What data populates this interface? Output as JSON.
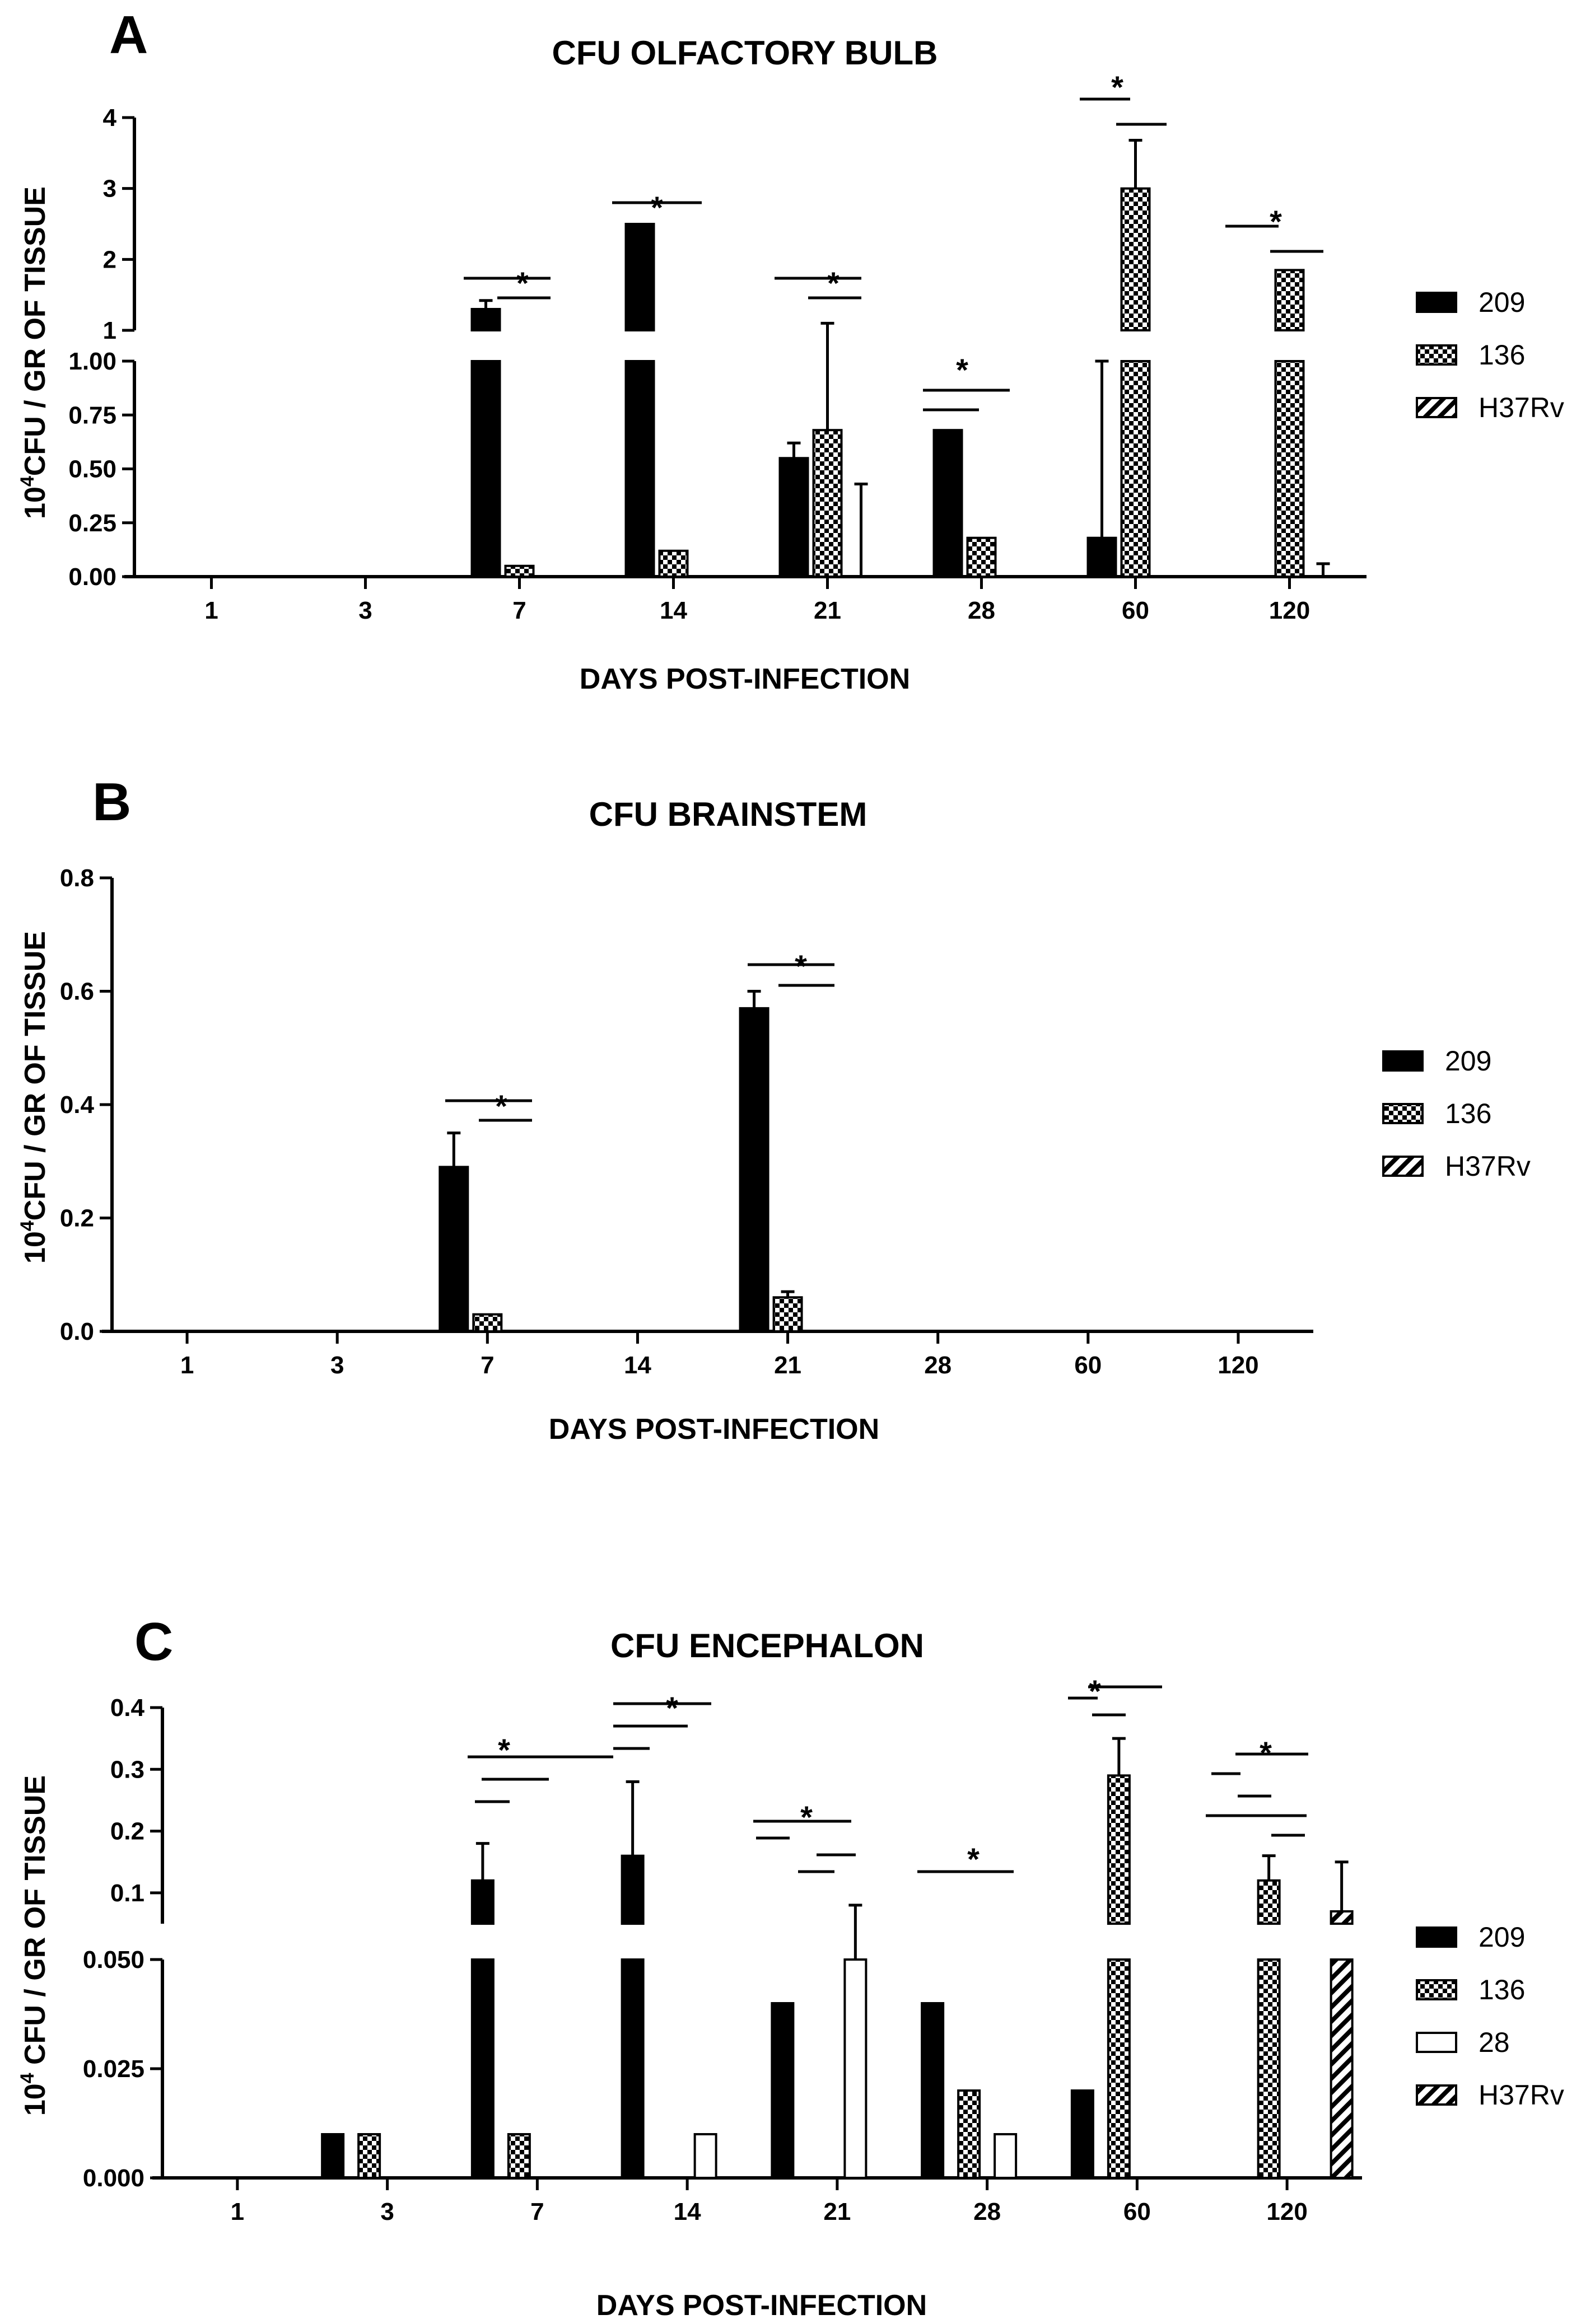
{
  "chart_data": [
    {
      "type": "bar",
      "panel": "A",
      "title": "CFU OLFACTORY BULB",
      "xlabel": "DAYS POST-INFECTION",
      "ylabel": "10^4CFU / GR OF TISSUE",
      "ylabel_base": "10",
      "ylabel_exp": "4",
      "ylabel_rest": "CFU / GR OF TISSUE",
      "categories": [
        "1",
        "3",
        "7",
        "14",
        "21",
        "28",
        "60",
        "120"
      ],
      "y_axis_broken": true,
      "ylim_lower": [
        0,
        1.0
      ],
      "ylim_upper": [
        1,
        4
      ],
      "yticks_lower": [
        "0.00",
        "0.25",
        "0.50",
        "0.75",
        "1.00"
      ],
      "yticks_upper": [
        "1",
        "2",
        "3",
        "4"
      ],
      "legend": [
        "209",
        "136",
        "H37Rv"
      ],
      "series": [
        {
          "name": "209",
          "pattern": "solid",
          "values": [
            0,
            0,
            1.3,
            2.5,
            0.55,
            0.68,
            0.18,
            0
          ],
          "errors": [
            0,
            0,
            0.12,
            0,
            0.07,
            0,
            0.82,
            0
          ]
        },
        {
          "name": "136",
          "pattern": "checker",
          "values": [
            0,
            0,
            0.05,
            0.12,
            0.68,
            0.18,
            3.0,
            1.85
          ],
          "errors": [
            0,
            0,
            0,
            0,
            0.42,
            0,
            0.68,
            0
          ]
        },
        {
          "name": "H37Rv",
          "pattern": "hatch",
          "values": [
            0,
            0,
            0,
            0,
            0,
            0,
            0,
            0
          ],
          "errors": [
            0,
            0,
            0,
            0,
            0.43,
            0,
            0,
            0.06
          ]
        }
      ],
      "significance": [
        "*",
        "*",
        "*",
        "*",
        "*",
        "*"
      ]
    },
    {
      "type": "bar",
      "panel": "B",
      "title": "CFU BRAINSTEM",
      "xlabel": "DAYS POST-INFECTION",
      "ylabel": "10^4CFU / GR OF TISSUE",
      "ylabel_base": "10",
      "ylabel_exp": "4",
      "ylabel_rest": "CFU / GR OF TISSUE",
      "categories": [
        "1",
        "3",
        "7",
        "14",
        "21",
        "28",
        "60",
        "120"
      ],
      "ylim": [
        0,
        0.8
      ],
      "yticks": [
        "0.0",
        "0.2",
        "0.4",
        "0.6",
        "0.8"
      ],
      "legend": [
        "209",
        "136",
        "H37Rv"
      ],
      "series": [
        {
          "name": "209",
          "pattern": "solid",
          "values": [
            0,
            0,
            0.29,
            0,
            0.57,
            0,
            0,
            0
          ],
          "errors": [
            0,
            0,
            0.06,
            0,
            0.03,
            0,
            0,
            0
          ]
        },
        {
          "name": "136",
          "pattern": "checker",
          "values": [
            0,
            0,
            0.03,
            0,
            0.06,
            0,
            0,
            0
          ],
          "errors": [
            0,
            0,
            0,
            0,
            0.01,
            0,
            0,
            0
          ]
        },
        {
          "name": "H37Rv",
          "pattern": "hatch",
          "values": [
            0,
            0,
            0,
            0,
            0,
            0,
            0,
            0
          ],
          "errors": [
            0,
            0,
            0,
            0,
            0,
            0,
            0,
            0
          ]
        }
      ],
      "significance": [
        "*",
        "*"
      ]
    },
    {
      "type": "bar",
      "panel": "C",
      "title": "CFU ENCEPHALON",
      "xlabel": "DAYS POST-INFECTION",
      "ylabel": "10^4 CFU / GR OF TISSUE",
      "ylabel_base": "10",
      "ylabel_exp": "4",
      "ylabel_rest": " CFU / GR OF TISSUE",
      "categories": [
        "1",
        "3",
        "7",
        "14",
        "21",
        "28",
        "60",
        "120"
      ],
      "y_axis_broken": true,
      "ylim_lower": [
        0,
        0.05
      ],
      "ylim_upper": [
        0.05,
        0.4
      ],
      "yticks_lower": [
        "0.000",
        "0.025",
        "0.050"
      ],
      "yticks_upper": [
        "0.1",
        "0.2",
        "0.3",
        "0.4"
      ],
      "legend": [
        "209",
        "136",
        "28",
        "H37Rv"
      ],
      "series": [
        {
          "name": "209",
          "pattern": "solid",
          "values": [
            0,
            0.01,
            0.12,
            0.16,
            0.04,
            0.04,
            0.02,
            0
          ],
          "errors": [
            0,
            0,
            0.06,
            0.12,
            0,
            0,
            0,
            0
          ]
        },
        {
          "name": "136",
          "pattern": "checker",
          "values": [
            0,
            0.01,
            0.01,
            0,
            0,
            0.02,
            0.29,
            0.12
          ],
          "errors": [
            0,
            0,
            0,
            0,
            0,
            0,
            0.06,
            0.04
          ]
        },
        {
          "name": "28",
          "pattern": "open",
          "values": [
            0,
            0,
            0,
            0.01,
            0.05,
            0.01,
            0,
            0
          ],
          "errors": [
            0,
            0,
            0,
            0,
            0.03,
            0,
            0,
            0
          ]
        },
        {
          "name": "H37Rv",
          "pattern": "hatch",
          "values": [
            0,
            0,
            0,
            0,
            0,
            0,
            0,
            0.07
          ],
          "errors": [
            0,
            0,
            0,
            0,
            0,
            0,
            0,
            0.08
          ]
        }
      ],
      "significance": [
        "*",
        "*",
        "*",
        "*",
        "*",
        "*"
      ]
    }
  ]
}
